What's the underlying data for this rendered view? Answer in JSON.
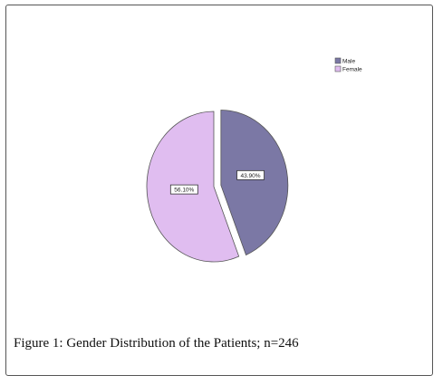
{
  "caption": {
    "label": "Figure 1:",
    "text": "Gender Distribution of the Patients; n=246"
  },
  "chart_data": {
    "type": "pie",
    "title": "",
    "categories": [
      "Male",
      "Female"
    ],
    "values": [
      43.9,
      56.1
    ],
    "labels": [
      "43.90%",
      "56.10%"
    ],
    "colors": [
      "#7b78a5",
      "#e0bdf0"
    ],
    "exploded": [
      "Male"
    ],
    "legend": {
      "position": "top-right",
      "entries": [
        "Male",
        "Female"
      ]
    }
  }
}
